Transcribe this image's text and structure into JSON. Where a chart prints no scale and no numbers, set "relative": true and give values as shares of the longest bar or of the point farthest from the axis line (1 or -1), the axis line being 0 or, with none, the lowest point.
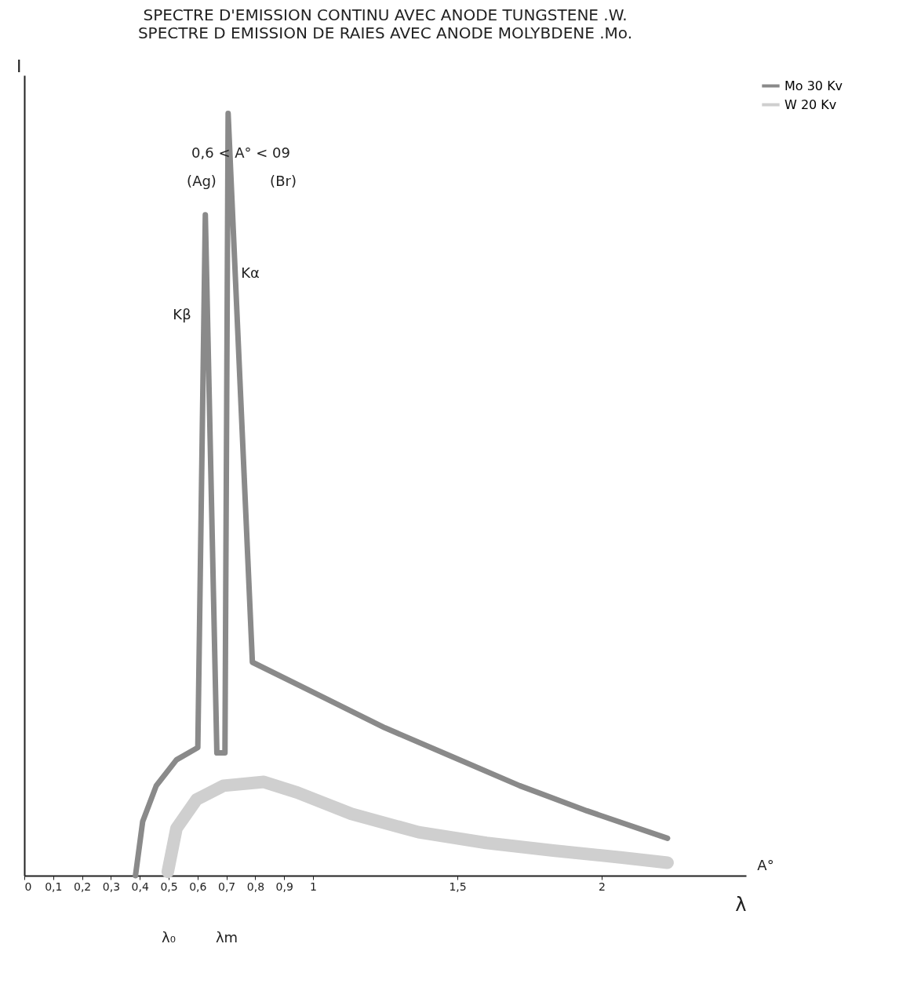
{
  "chart_data": {
    "type": "line",
    "title": "SPECTRE D'EMISSION CONTINU AVEC ANODE TUNGSTENE .W.",
    "subtitle": "SPECTRE D EMISSION DE RAIES AVEC ANODE MOLYBDENE .Mo.",
    "xlabel": "λ",
    "ylabel": "I",
    "relative": true,
    "grid": false,
    "legend": "right",
    "xlim": [
      0,
      2.5
    ],
    "xticks": [
      0,
      {
        "value": 0.1,
        "label": "0,1"
      },
      {
        "value": 0.2,
        "label": "0,2"
      },
      {
        "value": 0.3,
        "label": "0,3"
      },
      {
        "value": 0.4,
        "label": "0,4"
      },
      {
        "value": 0.5,
        "label": "0,5"
      },
      {
        "value": 0.6,
        "label": "0,6"
      },
      {
        "value": 0.7,
        "label": "0,7"
      },
      {
        "value": 0.8,
        "label": "0,8"
      },
      {
        "value": 0.9,
        "label": "0,9"
      },
      1,
      {
        "value": 1.5,
        "label": "1,5"
      },
      2
    ],
    "series": [
      {
        "name": "Mo  30 Kv",
        "color": "#8a8a8a",
        "x": [
          0.385,
          0.41,
          0.457,
          0.527,
          0.601,
          0.627,
          0.667,
          0.695,
          0.706,
          0.79,
          0.993,
          1.249,
          1.483,
          1.716,
          1.949,
          2.228
        ],
        "values": [
          0,
          0.071,
          0.118,
          0.152,
          0.168,
          0.867,
          0.161,
          0.161,
          1,
          0.28,
          0.242,
          0.194,
          0.156,
          0.118,
          0.085,
          0.049
        ]
      },
      {
        "name": "W  20 Kv",
        "color": "#cfcfcf",
        "x": [
          0.497,
          0.527,
          0.597,
          0.69,
          0.83,
          0.946,
          1.133,
          1.366,
          1.6,
          1.832,
          2.065,
          2.228
        ],
        "values": [
          0.005,
          0.062,
          0.1,
          0.118,
          0.123,
          0.109,
          0.081,
          0.057,
          0.043,
          0.033,
          0.024,
          0.017
        ]
      }
    ],
    "annotations": [
      "0,6 < A° < 09",
      "(Ag)",
      "(Br)",
      "Kβ",
      "Kα",
      "λ₀",
      "λm",
      "A°"
    ]
  }
}
